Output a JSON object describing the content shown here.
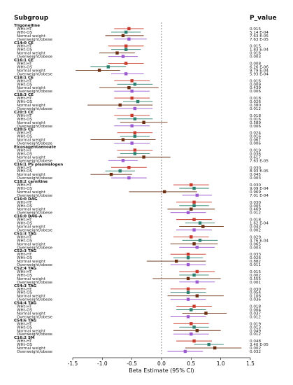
{
  "chart_data": {
    "type": "forest",
    "headers": {
      "left": "Subgroup",
      "right": "P_value"
    },
    "xlabel": "Beta Estimate (95% CI)",
    "xlim": [
      -1.5,
      1.5
    ],
    "ticks": [
      -1.5,
      -1.0,
      -0.5,
      0.0,
      0.5,
      1.0,
      1.5
    ],
    "tick_labels": [
      "-1.5",
      "-1.0",
      "-0.5",
      "0.0",
      "0.5",
      "1.0",
      "1.5"
    ],
    "reference_line": 0,
    "colors": {
      "WHt-HT": "#c8392b",
      "WHt-OS": "#2a7f6f",
      "Normal weight": "#6a2d0f",
      "Overweight/obese": "#9b59d0"
    },
    "groups": [
      {
        "name": "Trigonelline",
        "rows": [
          {
            "label": "WHt-HT",
            "est": -0.55,
            "lo": -0.8,
            "hi": -0.3,
            "p": "0.015"
          },
          {
            "label": "WHt-OS",
            "est": -0.6,
            "lo": -0.85,
            "hi": -0.35,
            "p": "5.14 E-04"
          },
          {
            "label": "Normal weight",
            "est": -0.65,
            "lo": -0.95,
            "hi": -0.3,
            "p": "7.63 E-05"
          },
          {
            "label": "Overweight/obese",
            "est": -0.55,
            "lo": -0.8,
            "hi": -0.25,
            "p": "7.63 E-05"
          }
        ]
      },
      {
        "name": "C14:0 CE",
        "rows": [
          {
            "label": "WHt-HT",
            "est": -0.6,
            "lo": -0.9,
            "hi": -0.3,
            "p": "0.015"
          },
          {
            "label": "WHt-OS",
            "est": -0.6,
            "lo": -0.85,
            "hi": -0.35,
            "p": "1.83 E-04"
          },
          {
            "label": "Normal weight",
            "est": -0.75,
            "lo": -1.05,
            "hi": -0.45,
            "p": "0.016"
          },
          {
            "label": "Overweight/obese",
            "est": -0.65,
            "lo": -0.9,
            "hi": -0.4,
            "p": "0.003"
          }
        ]
      },
      {
        "name": "C16:1 CE",
        "rows": [
          {
            "label": "WHt-HT",
            "est": -0.6,
            "lo": -0.9,
            "hi": -0.3,
            "p": "0.008"
          },
          {
            "label": "WHt-OS",
            "est": -0.9,
            "lo": -1.2,
            "hi": -0.6,
            "p": "6.26 E-06"
          },
          {
            "label": "Normal weight",
            "est": -1.05,
            "lo": -1.45,
            "hi": -0.7,
            "p": "9.79 E-04"
          },
          {
            "label": "Overweight/obese",
            "est": -0.6,
            "lo": -0.85,
            "hi": -0.3,
            "p": "5.93 E-04"
          }
        ]
      },
      {
        "name": "C18:1 CE",
        "rows": [
          {
            "label": "WHt-HT",
            "est": -0.5,
            "lo": -0.8,
            "hi": -0.2,
            "p": "0.016"
          }
        ]
      },
      {
        "name": "",
        "rows": [
          {
            "label": "WHt-OS",
            "est": -0.45,
            "lo": -0.75,
            "hi": -0.15,
            "p": "0.009"
          },
          {
            "label": "Normal weight",
            "est": -0.55,
            "lo": -1.05,
            "hi": -0.05,
            "p": "0.439"
          },
          {
            "label": "Overweight/obese",
            "est": -0.5,
            "lo": -0.8,
            "hi": -0.2,
            "p": "0.006"
          }
        ]
      },
      {
        "name": "C18:3 CE",
        "rows": [
          {
            "label": "WHt-HT",
            "est": -0.5,
            "lo": -0.8,
            "hi": -0.2,
            "p": "0.018"
          },
          {
            "label": "WHt-OS",
            "est": -0.4,
            "lo": -0.65,
            "hi": -0.15,
            "p": "0.026"
          },
          {
            "label": "Normal weight",
            "est": -0.7,
            "lo": -1.25,
            "hi": -0.15,
            "p": "0.380"
          },
          {
            "label": "Overweight/obese",
            "est": -0.45,
            "lo": -0.75,
            "hi": -0.15,
            "p": "0.012"
          }
        ]
      },
      {
        "name": "C20:3 CE",
        "rows": [
          {
            "label": "WHt-HT",
            "est": -0.5,
            "lo": -0.8,
            "hi": -0.2,
            "p": "0.018"
          },
          {
            "label": "WHt-OS",
            "est": -0.45,
            "lo": -0.75,
            "hi": -0.15,
            "p": "0.016"
          },
          {
            "label": "Normal weight",
            "est": -0.3,
            "lo": -0.7,
            "hi": 0.1,
            "p": "0.589"
          },
          {
            "label": "Overweight/obese",
            "est": -0.5,
            "lo": -0.8,
            "hi": -0.2,
            "p": "0.006"
          }
        ]
      },
      {
        "name": "C20:5 CE",
        "rows": [
          {
            "label": "WHt-HT",
            "est": -0.45,
            "lo": -0.75,
            "hi": -0.15,
            "p": "0.024"
          },
          {
            "label": "WHt-OS",
            "est": -0.45,
            "lo": -0.7,
            "hi": -0.2,
            "p": "0.016"
          },
          {
            "label": "Normal weight",
            "est": -0.65,
            "lo": -1.2,
            "hi": -0.1,
            "p": "0.067"
          },
          {
            "label": "Overweight/obese",
            "est": -0.5,
            "lo": -0.8,
            "hi": -0.2,
            "p": "0.006"
          }
        ]
      },
      {
        "name": "Eicosapentaenoate",
        "rows": [
          {
            "label": "WHt-HT",
            "est": -0.45,
            "lo": -0.75,
            "hi": -0.15,
            "p": "0.019"
          },
          {
            "label": "WHt-OS",
            "est": -0.45,
            "lo": -0.7,
            "hi": -0.2,
            "p": "0.036"
          },
          {
            "label": "Normal weight",
            "est": -0.3,
            "lo": -0.75,
            "hi": 0.15,
            "p": "0.617"
          },
          {
            "label": "Overweight/obese",
            "est": -0.65,
            "lo": -0.9,
            "hi": -0.4,
            "p": "7.63 E-05"
          }
        ]
      },
      {
        "name": "C16:1 PS plasmalogen",
        "rows": [
          {
            "label": "WHt-HT",
            "est": -0.55,
            "lo": -0.85,
            "hi": -0.25,
            "p": "0.030"
          },
          {
            "label": "WHt-OS",
            "est": -0.7,
            "lo": -0.95,
            "hi": -0.45,
            "p": "8.93 E-05"
          },
          {
            "label": "Normal weight",
            "est": -0.85,
            "lo": -1.2,
            "hi": -0.5,
            "p": "0.045"
          },
          {
            "label": "Overweight/obese",
            "est": -0.55,
            "lo": -0.85,
            "hi": -0.25,
            "p": "0.003"
          }
        ]
      },
      {
        "name": "C18:2 carnitine",
        "rows": [
          {
            "label": "WHt-HT",
            "est": 0.5,
            "lo": 0.2,
            "hi": 0.8,
            "p": "0.030"
          },
          {
            "label": "WHt-OS",
            "est": 0.55,
            "lo": 0.3,
            "hi": 0.8,
            "p": "9.09 E-04"
          },
          {
            "label": "Normal weight",
            "est": 0.05,
            "lo": -0.55,
            "hi": 0.6,
            "p": "0.969"
          },
          {
            "label": "Overweight/obese",
            "est": 0.6,
            "lo": 0.35,
            "hi": 0.85,
            "p": "7.01 E-04"
          }
        ]
      },
      {
        "name": "C16:0 DAG",
        "rows": [
          {
            "label": "WHt-HT",
            "est": 0.55,
            "lo": 0.25,
            "hi": 0.85,
            "p": "0.030"
          },
          {
            "label": "WHt-OS",
            "est": 0.55,
            "lo": 0.3,
            "hi": 0.8,
            "p": "0.005"
          },
          {
            "label": "Normal weight",
            "est": 0.5,
            "lo": 0.1,
            "hi": 0.9,
            "p": "0.469"
          },
          {
            "label": "Overweight/obese",
            "est": 0.45,
            "lo": 0.15,
            "hi": 0.75,
            "p": "0.012"
          }
        ]
      },
      {
        "name": "C16:0 DAG-A",
        "rows": [
          {
            "label": "WHt-HT",
            "est": 0.55,
            "lo": 0.25,
            "hi": 0.85,
            "p": "0.018"
          },
          {
            "label": "WHt-OS",
            "est": 0.65,
            "lo": 0.4,
            "hi": 0.9,
            "p": "1.62 E-04"
          },
          {
            "label": "Normal weight",
            "est": 0.7,
            "lo": 0.3,
            "hi": 1.05,
            "p": "0.043"
          },
          {
            "label": "Overweight/obese",
            "est": 0.55,
            "lo": 0.25,
            "hi": 0.85,
            "p": "0.002"
          }
        ]
      },
      {
        "name": "C51:3 TAG",
        "rows": [
          {
            "label": "WHt-HT",
            "est": 0.5,
            "lo": 0.2,
            "hi": 0.8,
            "p": "0.029"
          },
          {
            "label": "WHt-OS",
            "est": 0.65,
            "lo": 0.35,
            "hi": 0.95,
            "p": "4.76 E-04"
          },
          {
            "label": "Normal weight",
            "est": 0.55,
            "lo": 0.15,
            "hi": 0.95,
            "p": "0.065"
          },
          {
            "label": "Overweight/obese",
            "est": 0.6,
            "lo": 0.3,
            "hi": 0.9,
            "p": "0.003"
          }
        ]
      },
      {
        "name": "C52:3 TAG",
        "rows": [
          {
            "label": "WHt-HT",
            "est": 0.45,
            "lo": 0.15,
            "hi": 0.75,
            "p": "0.033"
          },
          {
            "label": "WHt-OS",
            "est": 0.45,
            "lo": 0.2,
            "hi": 0.7,
            "p": "0.026"
          },
          {
            "label": "Normal weight",
            "est": 0.25,
            "lo": -0.25,
            "hi": 0.75,
            "p": "0.882"
          },
          {
            "label": "Overweight/obese",
            "est": 0.45,
            "lo": 0.15,
            "hi": 0.75,
            "p": "0.011"
          }
        ]
      },
      {
        "name": "C52:4 TAG",
        "rows": [
          {
            "label": "WHt-HT",
            "est": 0.6,
            "lo": 0.3,
            "hi": 0.9,
            "p": "0.015"
          },
          {
            "label": "WHt-OS",
            "est": 0.55,
            "lo": 0.3,
            "hi": 0.8,
            "p": "0.002"
          },
          {
            "label": "Normal weight",
            "est": 0.45,
            "lo": -0.15,
            "hi": 1.0,
            "p": "0.555"
          },
          {
            "label": "Overweight/obese",
            "est": 0.6,
            "lo": 0.3,
            "hi": 0.9,
            "p": "0.001"
          }
        ]
      },
      {
        "name": "C54:3 TAG",
        "rows": [
          {
            "label": "WHt-HT",
            "est": 0.45,
            "lo": 0.15,
            "hi": 0.75,
            "p": "0.030"
          },
          {
            "label": "WHt-OS",
            "est": 0.45,
            "lo": 0.15,
            "hi": 0.75,
            "p": "0.054"
          },
          {
            "label": "Normal weight",
            "est": 0.6,
            "lo": 0.1,
            "hi": 1.05,
            "p": "0.106"
          },
          {
            "label": "Overweight/obese",
            "est": 0.45,
            "lo": 0.15,
            "hi": 0.75,
            "p": "0.036"
          }
        ]
      },
      {
        "name": "C54:4 TAG",
        "rows": [
          {
            "label": "WHt-HT",
            "est": 0.55,
            "lo": 0.25,
            "hi": 0.85,
            "p": "0.018"
          },
          {
            "label": "WHt-OS",
            "est": 0.5,
            "lo": 0.25,
            "hi": 0.75,
            "p": "0.004"
          },
          {
            "label": "Normal weight",
            "est": 0.75,
            "lo": 0.35,
            "hi": 1.1,
            "p": "0.037"
          },
          {
            "label": "Overweight/obese",
            "est": 0.45,
            "lo": 0.15,
            "hi": 0.75,
            "p": "0.012"
          }
        ]
      },
      {
        "name": "C54:6 TAG",
        "rows": [
          {
            "label": "WHt-HT",
            "est": 0.5,
            "lo": 0.2,
            "hi": 0.8,
            "p": "0.019"
          },
          {
            "label": "WHt-OS",
            "est": 0.55,
            "lo": 0.3,
            "hi": 0.8,
            "p": "0.013"
          },
          {
            "label": "Normal weight",
            "est": 0.6,
            "lo": 0.2,
            "hi": 1.0,
            "p": "0.049"
          },
          {
            "label": "Overweight/obese",
            "est": 0.5,
            "lo": 0.2,
            "hi": 0.8,
            "p": "0.012"
          }
        ]
      },
      {
        "name": "C16:2 SM",
        "rows": [
          {
            "label": "WHt-HT",
            "est": 0.55,
            "lo": 0.25,
            "hi": 0.85,
            "p": "0.048"
          },
          {
            "label": "WHt-OS",
            "est": 0.8,
            "lo": 0.55,
            "hi": 1.05,
            "p": "3.40 E-05"
          },
          {
            "label": "Normal weight",
            "est": 0.9,
            "lo": 0.4,
            "hi": 1.35,
            "p": "0.002"
          },
          {
            "label": "Overweight/obese",
            "est": 0.4,
            "lo": 0.1,
            "hi": 0.7,
            "p": "0.032"
          }
        ]
      }
    ]
  }
}
